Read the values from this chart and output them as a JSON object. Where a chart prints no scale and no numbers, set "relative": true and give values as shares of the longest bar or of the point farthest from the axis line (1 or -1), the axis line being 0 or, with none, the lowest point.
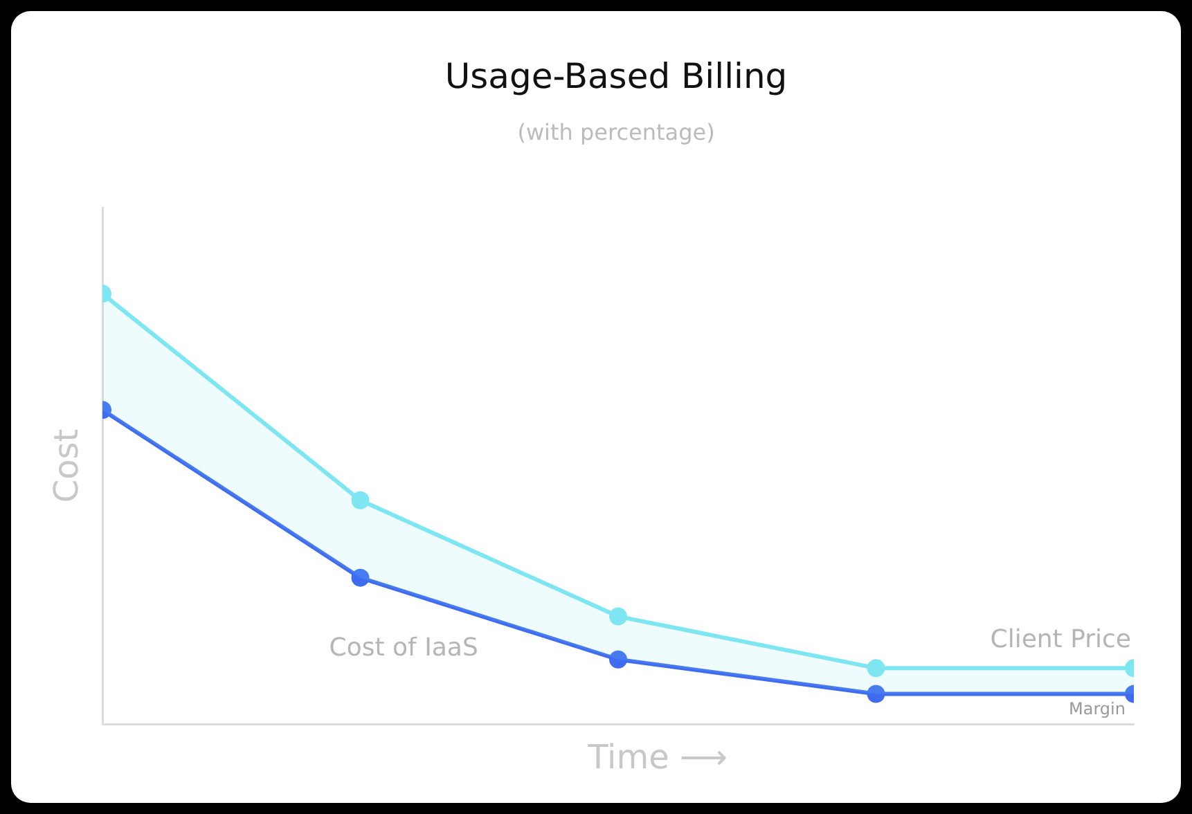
{
  "chart_data": {
    "type": "line",
    "title": "Usage-Based Billing",
    "subtitle": "(with percentage)",
    "xlabel": "Time ⟶",
    "ylabel": "Cost",
    "relative": true,
    "categories": [
      null,
      null,
      null,
      null,
      null
    ],
    "tick_labels": false,
    "grid": false,
    "legend": false,
    "marker": "circle",
    "line_style": "solid",
    "annotations": [
      "Margin"
    ],
    "series": [
      {
        "name": "Client Price",
        "color": "#7ee6f2",
        "values": [
          1,
          0.52,
          0.25,
          0.13,
          0.13
        ],
        "lower": [
          0.73,
          0.34,
          0.15,
          0.07,
          0.07
        ],
        "upper": [
          1,
          0.52,
          0.25,
          0.13,
          0.13
        ]
      },
      {
        "name": "Cost of IaaS",
        "color": "#3f6bf0",
        "values": [
          0.73,
          0.34,
          0.15,
          0.07,
          0.07
        ]
      }
    ]
  }
}
